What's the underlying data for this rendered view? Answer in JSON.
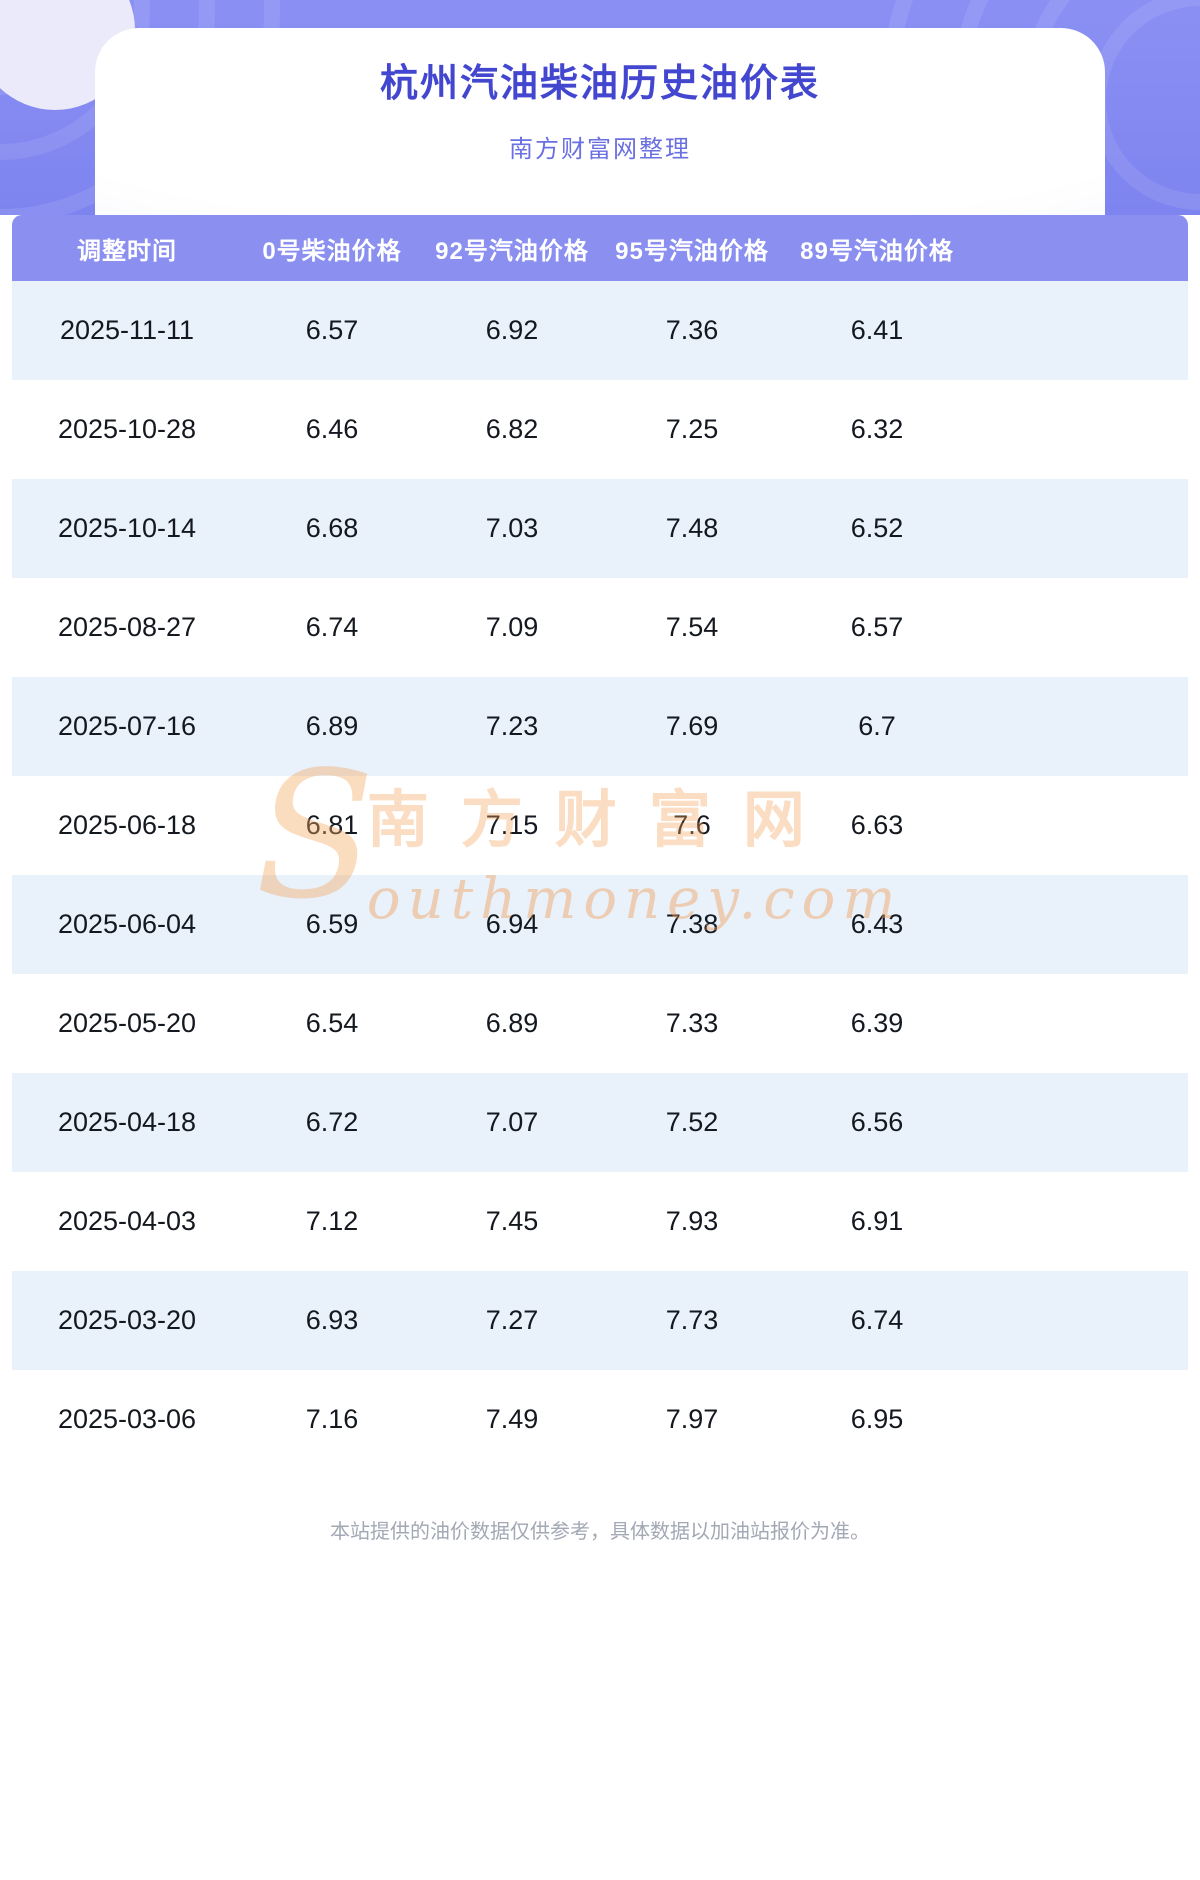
{
  "header": {
    "title": "杭州汽油柴油历史油价表",
    "subtitle": "南方财富网整理"
  },
  "table": {
    "headers": [
      "调整时间",
      "0号柴油价格",
      "92号汽油价格",
      "95号汽油价格",
      "89号汽油价格"
    ],
    "rows": [
      [
        "2025-11-11",
        "6.57",
        "6.92",
        "7.36",
        "6.41"
      ],
      [
        "2025-10-28",
        "6.46",
        "6.82",
        "7.25",
        "6.32"
      ],
      [
        "2025-10-14",
        "6.68",
        "7.03",
        "7.48",
        "6.52"
      ],
      [
        "2025-08-27",
        "6.74",
        "7.09",
        "7.54",
        "6.57"
      ],
      [
        "2025-07-16",
        "6.89",
        "7.23",
        "7.69",
        "6.7"
      ],
      [
        "2025-06-18",
        "6.81",
        "7.15",
        "7.6",
        "6.63"
      ],
      [
        "2025-06-04",
        "6.59",
        "6.94",
        "7.38",
        "6.43"
      ],
      [
        "2025-05-20",
        "6.54",
        "6.89",
        "7.33",
        "6.39"
      ],
      [
        "2025-04-18",
        "6.72",
        "7.07",
        "7.52",
        "6.56"
      ],
      [
        "2025-04-03",
        "7.12",
        "7.45",
        "7.93",
        "6.91"
      ],
      [
        "2025-03-20",
        "6.93",
        "7.27",
        "7.73",
        "6.74"
      ],
      [
        "2025-03-06",
        "7.16",
        "7.49",
        "7.97",
        "6.95"
      ]
    ]
  },
  "chart_data": {
    "type": "table",
    "title": "杭州汽油柴油历史油价表",
    "columns": [
      "调整时间",
      "0号柴油价格",
      "92号汽油价格",
      "95号汽油价格",
      "89号汽油价格"
    ],
    "rows": [
      [
        "2025-11-11",
        6.57,
        6.92,
        7.36,
        6.41
      ],
      [
        "2025-10-28",
        6.46,
        6.82,
        7.25,
        6.32
      ],
      [
        "2025-10-14",
        6.68,
        7.03,
        7.48,
        6.52
      ],
      [
        "2025-08-27",
        6.74,
        7.09,
        7.54,
        6.57
      ],
      [
        "2025-07-16",
        6.89,
        7.23,
        7.69,
        6.7
      ],
      [
        "2025-06-18",
        6.81,
        7.15,
        7.6,
        6.63
      ],
      [
        "2025-06-04",
        6.59,
        6.94,
        7.38,
        6.43
      ],
      [
        "2025-05-20",
        6.54,
        6.89,
        7.33,
        6.39
      ],
      [
        "2025-04-18",
        6.72,
        7.07,
        7.52,
        6.56
      ],
      [
        "2025-04-03",
        7.12,
        7.45,
        7.93,
        6.91
      ],
      [
        "2025-03-20",
        6.93,
        7.27,
        7.73,
        6.74
      ],
      [
        "2025-03-06",
        7.16,
        7.49,
        7.97,
        6.95
      ]
    ]
  },
  "watermark": {
    "initial": "S",
    "cjk": "南方财富网",
    "latin": "outhmoney.com"
  },
  "footer": {
    "note": "本站提供的油价数据仅供参考，具体数据以加油站报价为准。"
  },
  "colors": {
    "banner": "#7e84ef",
    "banner_light": "#8a90f3",
    "title": "#4347cf",
    "subtitle": "#6a6fe2",
    "table_header_bg": "#8a8ff0",
    "table_header_text": "#ffffff",
    "row_stripe": "#e9f1fb",
    "cell_text": "#14181f",
    "footer_text": "#a2a8b4",
    "watermark": "#f0a05a"
  }
}
